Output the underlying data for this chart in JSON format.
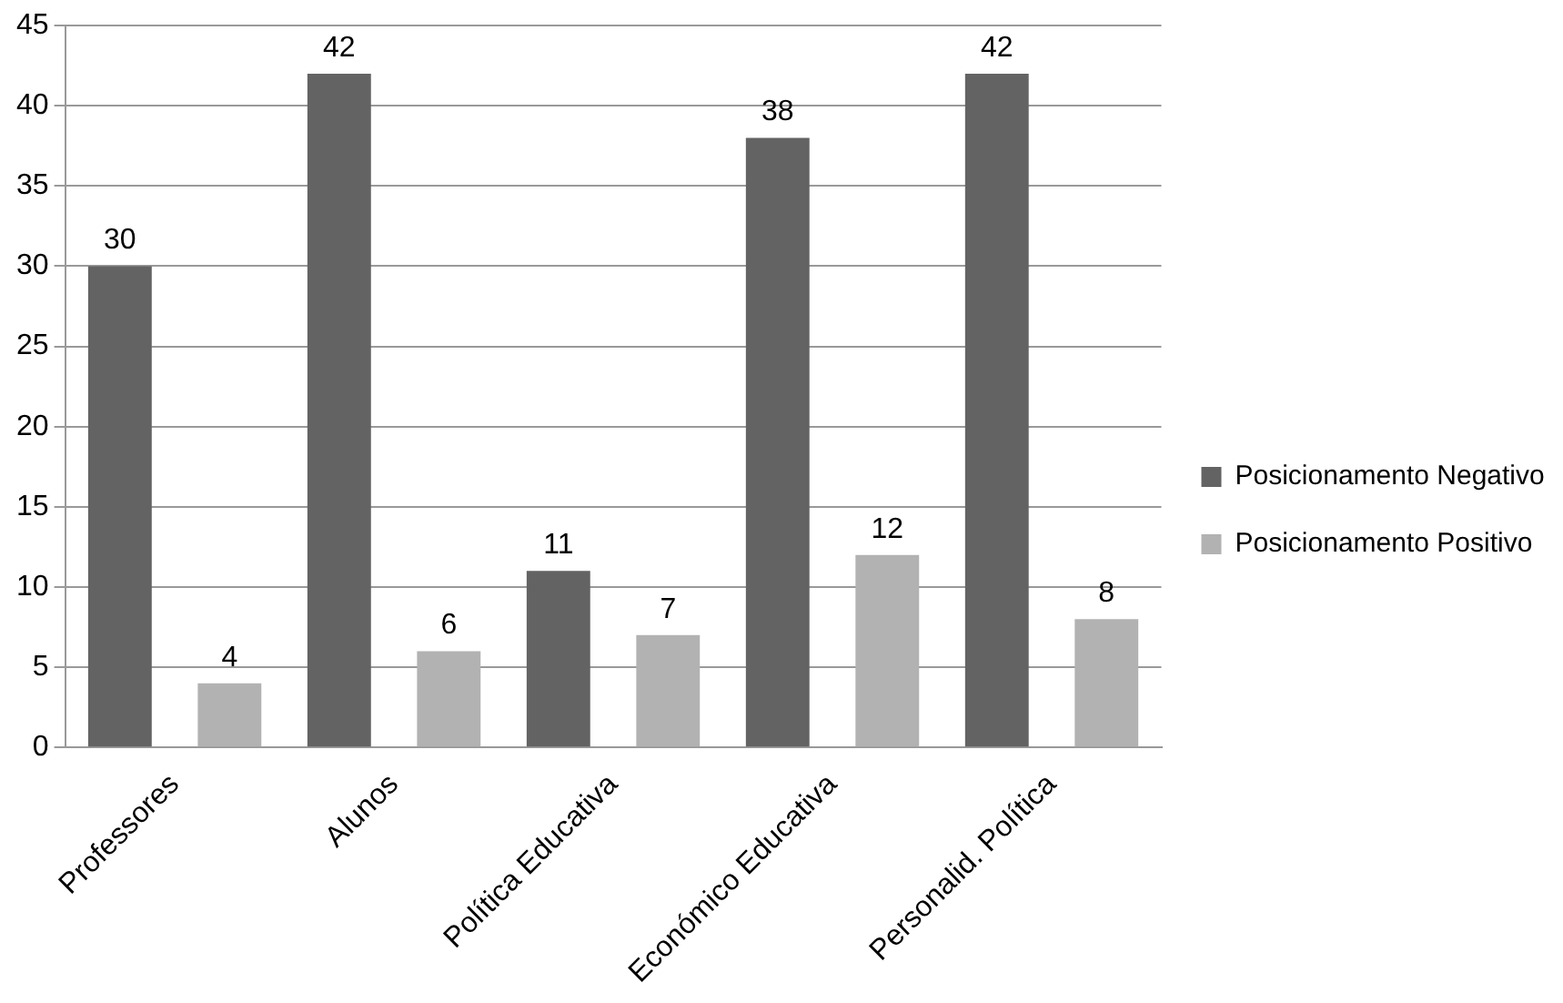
{
  "chart_data": {
    "type": "bar",
    "categories": [
      "Professores",
      "Alunos",
      "Política Educativa",
      "Económico Educativa",
      "Personalid. Política"
    ],
    "series": [
      {
        "name": "Posicionamento Negativo",
        "color": "#636363",
        "values": [
          30,
          42,
          11,
          38,
          42
        ]
      },
      {
        "name": "Posicionamento Positivo",
        "color": "#b2b2b2",
        "values": [
          4,
          6,
          7,
          12,
          8
        ]
      }
    ],
    "ylim": [
      0,
      45
    ],
    "yticks": [
      0,
      5,
      10,
      15,
      20,
      25,
      30,
      35,
      40,
      45
    ],
    "grid": "y",
    "legend": "right",
    "data_labels": true
  }
}
